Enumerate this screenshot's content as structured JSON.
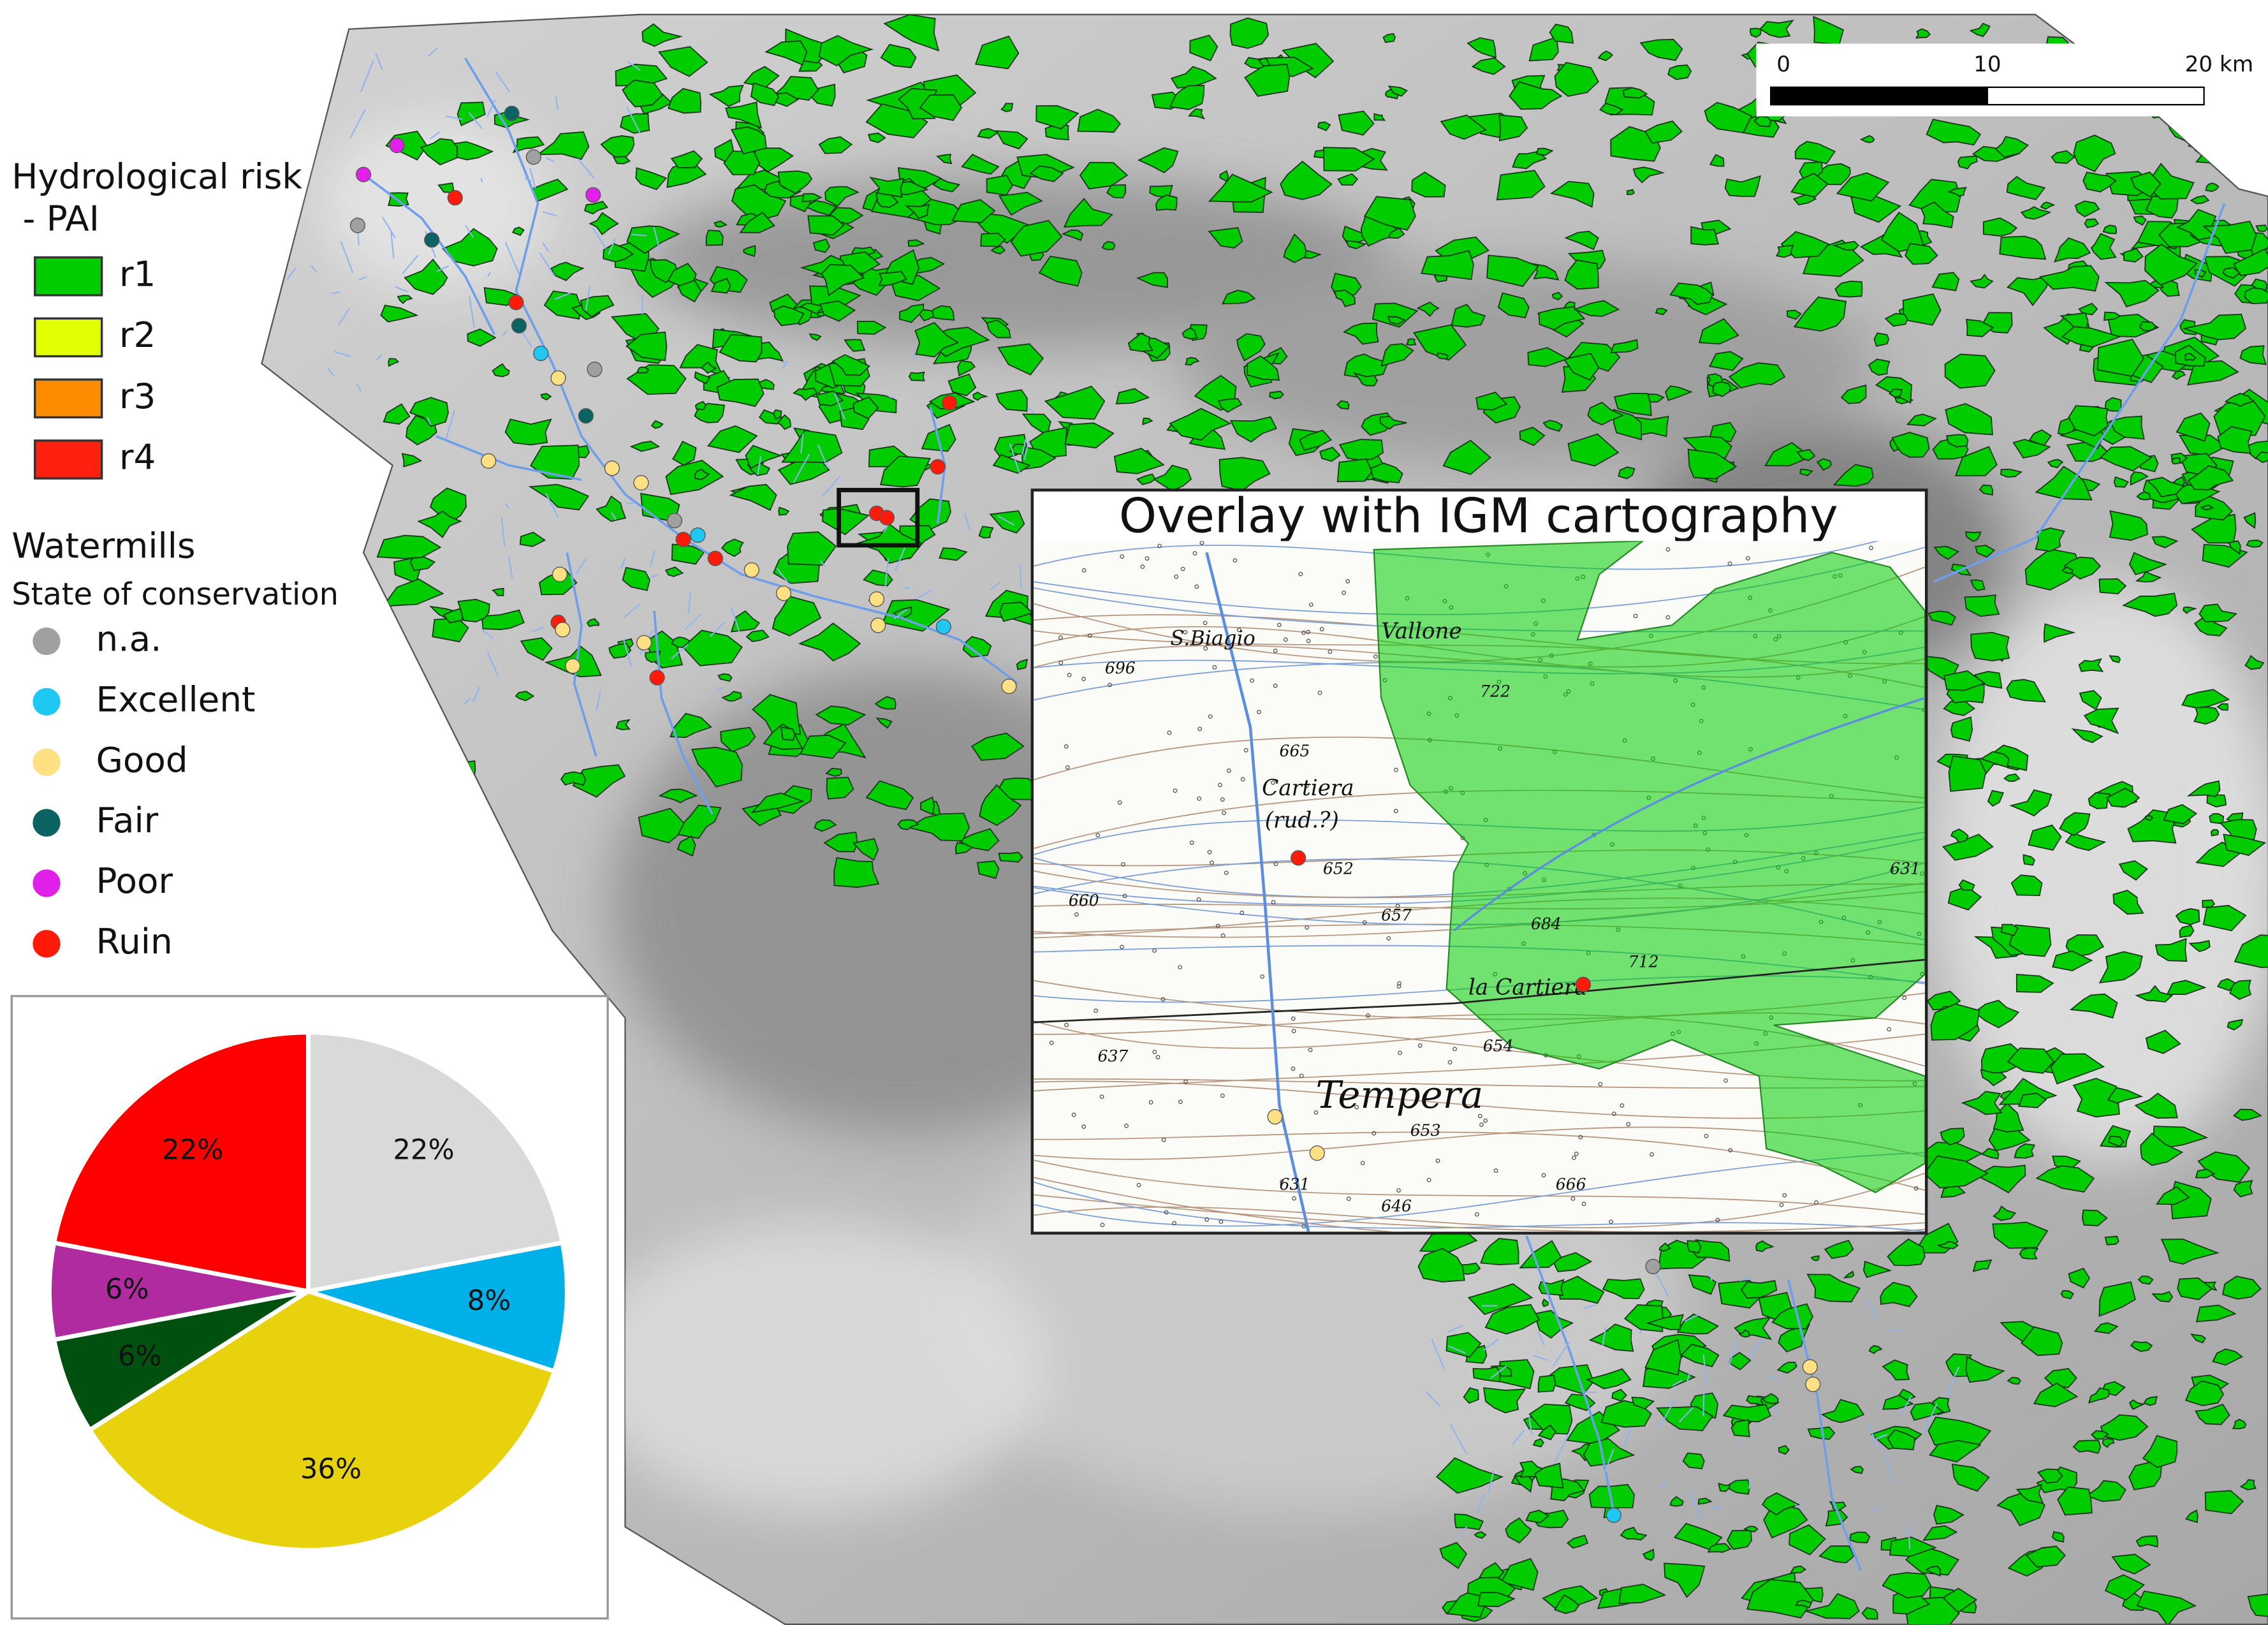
{
  "legend": {
    "risk_title": "Hydrological risk",
    "risk_subtitle": " - PAI",
    "risk_items": [
      {
        "label": "r1",
        "color": "#00cc00"
      },
      {
        "label": "r2",
        "color": "#e2ff00"
      },
      {
        "label": "r3",
        "color": "#ff8c00"
      },
      {
        "label": "r4",
        "color": "#ff2010"
      }
    ],
    "mills_title": "Watermills",
    "mills_subtitle": "State of conservation",
    "mills_items": [
      {
        "label": "n.a.",
        "color": "#a0a0a0"
      },
      {
        "label": "Excellent",
        "color": "#1ec8f2"
      },
      {
        "label": "Good",
        "color": "#ffe083"
      },
      {
        "label": "Fair",
        "color": "#0b6262"
      },
      {
        "label": "Poor",
        "color": "#e020e8"
      },
      {
        "label": "Ruin",
        "color": "#ff1a0a"
      }
    ]
  },
  "scale_bar": {
    "labels": [
      "0",
      "10",
      "20 km"
    ]
  },
  "inset": {
    "title": "Overlay with IGM cartography",
    "place_labels": [
      "S.Biagio",
      "Cartiera",
      "(rud.?)",
      "Tempera",
      "la Cartiera",
      "Vallone",
      "696",
      "665",
      "652",
      "657",
      "660",
      "684",
      "712",
      "654",
      "637",
      "653",
      "631",
      "646",
      "666",
      "722",
      "631"
    ]
  },
  "chart_data": {
    "type": "pie",
    "values": [
      22,
      8,
      36,
      6,
      6,
      22
    ],
    "value_labels": [
      "22%",
      "8%",
      "36%",
      "6%",
      "6%",
      "22%"
    ],
    "colors": [
      "#d9d9d9",
      "#00b0e8",
      "#e8d20e",
      "#00500f",
      "#b02aa0",
      "#ff0000"
    ]
  }
}
